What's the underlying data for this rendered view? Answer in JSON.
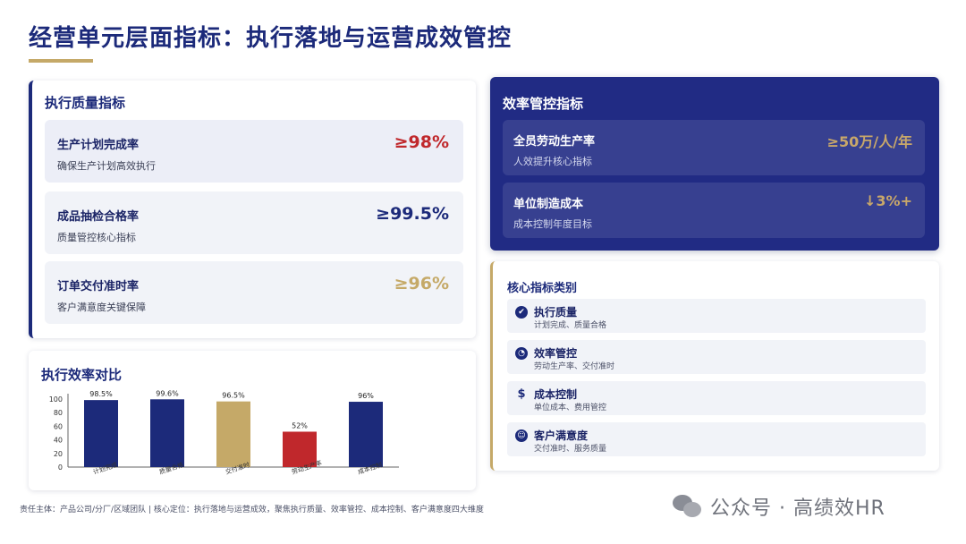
{
  "title": "经营单元层面指标：执行落地与运营成效管控",
  "quality": {
    "heading": "执行质量指标",
    "items": [
      {
        "name": "生产计划完成率",
        "desc": "确保生产计划高效执行",
        "value": "≥98%",
        "color": "#c0282c"
      },
      {
        "name": "成品抽检合格率",
        "desc": "质量管控核心指标",
        "value": "≥99.5%",
        "color": "#1c2a7a"
      },
      {
        "name": "订单交付准时率",
        "desc": "客户满意度关键保障",
        "value": "≥96%",
        "color": "#c5a968"
      }
    ]
  },
  "chart_section": {
    "heading": "执行效率对比"
  },
  "chart_data": {
    "type": "bar",
    "categories": [
      "计划完成",
      "质量合格",
      "交付准时",
      "劳动生产率",
      "成本控制"
    ],
    "values": [
      98.5,
      99.6,
      96.5,
      52,
      96
    ],
    "data_labels": [
      "98.5%",
      "99.6%",
      "96.5%",
      "52%",
      "96%"
    ],
    "bar_colors": [
      "#1c2a7a",
      "#1c2a7a",
      "#c5a968",
      "#c0282c",
      "#1c2a7a"
    ],
    "ylim": [
      0,
      100
    ],
    "yticks": [
      "0",
      "20",
      "40",
      "60",
      "80",
      "100"
    ],
    "grid": false,
    "legend": "none"
  },
  "efficiency": {
    "heading": "效率管控指标",
    "items": [
      {
        "name": "全员劳动生产率",
        "desc": "人效提升核心指标",
        "value": "≥50万/人/年"
      },
      {
        "name": "单位制造成本",
        "desc": "成本控制年度目标",
        "value": "↓3%+"
      }
    ]
  },
  "categories": {
    "heading": "核心指标类别",
    "items": [
      {
        "icon": "check-circle-icon",
        "glyph": "✔",
        "name": "执行质量",
        "desc": "计划完成、质量合格"
      },
      {
        "icon": "gauge-icon",
        "glyph": "◔",
        "name": "效率管控",
        "desc": "劳动生产率、交付准时"
      },
      {
        "icon": "dollar-icon",
        "glyph": "$",
        "name": "成本控制",
        "desc": "单位成本、费用管控"
      },
      {
        "icon": "smile-icon",
        "glyph": "☺",
        "name": "客户满意度",
        "desc": "交付准时、服务质量"
      }
    ]
  },
  "footer": "责任主体：产品公司/分厂/区域团队 | 核心定位：执行落地与运营成效，聚焦执行质量、效率管控、成本控制、客户满意度四大维度",
  "watermark": "公众号 · 高绩效HR"
}
